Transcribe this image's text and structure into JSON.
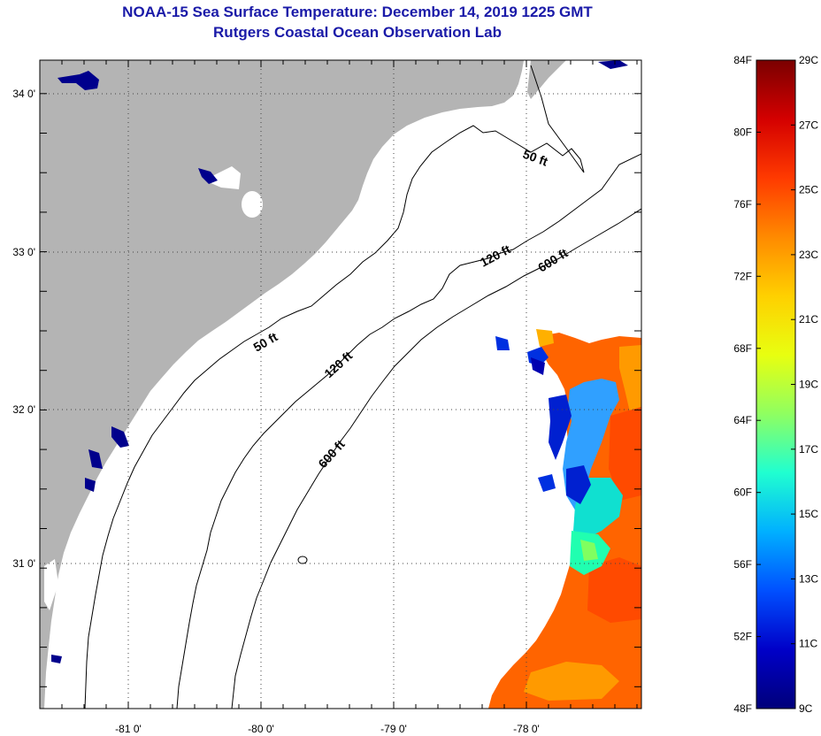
{
  "title": "NOAA-15 Sea Surface Temperature:  December 14, 2019 1225 GMT",
  "subtitle": "Rutgers Coastal Ocean Observation Lab",
  "map": {
    "lat_labels": [
      "34 0'",
      "33 0'",
      "32 0'",
      "31 0'"
    ],
    "lon_labels": [
      "-81 0'",
      "-80 0'",
      "-79 0'",
      "-78 0'"
    ],
    "land_color": "#b4b4b4",
    "water_color": "#ffffff",
    "contours": [
      {
        "label": "50 ft"
      },
      {
        "label": "120 ft"
      },
      {
        "label": "600 ft"
      }
    ]
  },
  "colorbar": {
    "f_labels": [
      "84F",
      "80F",
      "76F",
      "72F",
      "68F",
      "64F",
      "60F",
      "56F",
      "52F",
      "48F"
    ],
    "c_labels": [
      "29C",
      "27C",
      "25C",
      "23C",
      "21C",
      "19C",
      "17C",
      "15C",
      "13C",
      "11C",
      "9C"
    ],
    "gradient": [
      "#7a0000",
      "#d40000",
      "#ff3a00",
      "#ff8a00",
      "#ffd000",
      "#e8ff10",
      "#90ff60",
      "#20ffd0",
      "#00b0ff",
      "#0050ff",
      "#0000c8",
      "#00007a"
    ]
  }
}
